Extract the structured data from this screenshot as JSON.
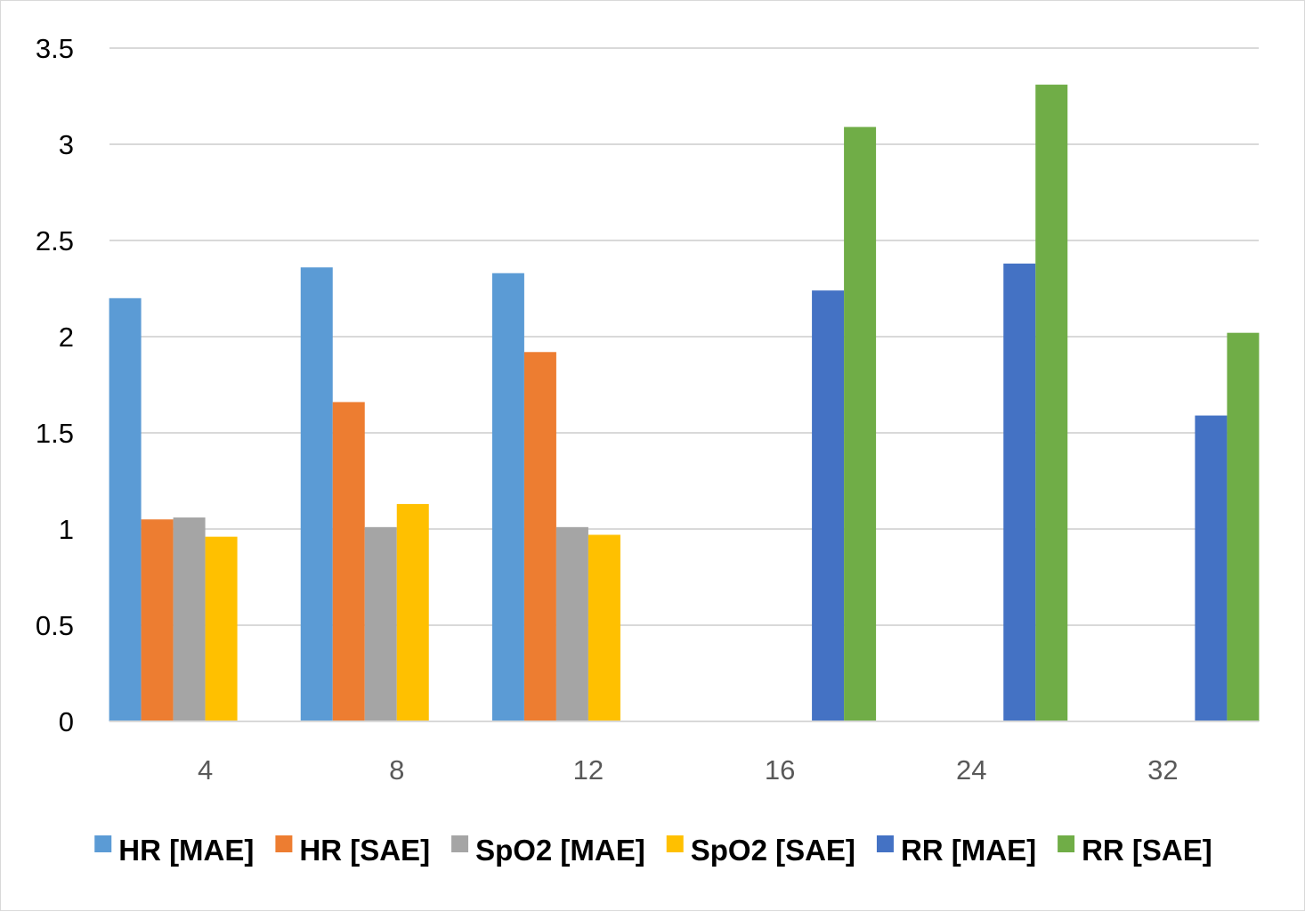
{
  "chart_data": {
    "type": "bar",
    "title": "",
    "xlabel": "",
    "ylabel": "",
    "categories": [
      "4",
      "8",
      "12",
      "16",
      "24",
      "32"
    ],
    "ylim": [
      0,
      3.5
    ],
    "yticks": [
      0,
      0.5,
      1,
      1.5,
      2,
      2.5,
      3,
      3.5
    ],
    "ytick_labels": [
      "0",
      "0.5",
      "1",
      "1.5",
      "2",
      "2.5",
      "3",
      "3.5"
    ],
    "grid": true,
    "legend_position": "bottom",
    "series": [
      {
        "name": "HR [MAE]",
        "color": "#5B9BD5",
        "values": [
          2.2,
          2.36,
          2.33,
          null,
          null,
          null
        ]
      },
      {
        "name": "HR [SAE]",
        "color": "#ED7D31",
        "values": [
          1.05,
          1.66,
          1.92,
          null,
          null,
          null
        ]
      },
      {
        "name": "SpO2 [MAE]",
        "color": "#A5A5A5",
        "values": [
          1.06,
          1.01,
          1.01,
          null,
          null,
          null
        ]
      },
      {
        "name": "SpO2 [SAE]",
        "color": "#FFC000",
        "values": [
          0.96,
          1.13,
          0.97,
          null,
          null,
          null
        ]
      },
      {
        "name": "RR [MAE]",
        "color": "#4472C4",
        "values": [
          null,
          null,
          null,
          2.24,
          2.38,
          1.59
        ]
      },
      {
        "name": "RR [SAE]",
        "color": "#70AD47",
        "values": [
          null,
          null,
          null,
          3.09,
          3.31,
          2.02
        ]
      }
    ]
  }
}
